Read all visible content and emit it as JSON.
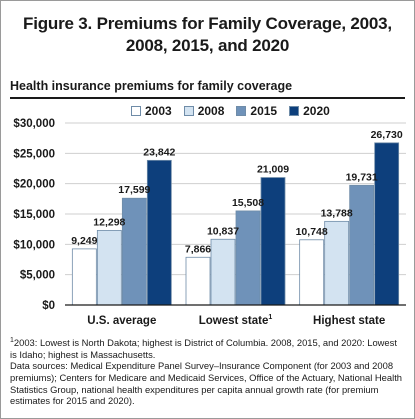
{
  "figure": {
    "title_line1": "Figure 3. Premiums for Family Coverage, 2003,",
    "title_line2": "2008, 2015, and 2020",
    "chart_heading": "Health insurance premiums for family coverage"
  },
  "colors": {
    "2003": "#ffffff",
    "2008": "#d3e3f1",
    "2015": "#6f92b9",
    "2020": "#0d3f7c",
    "bar_border": "#6f8ca8"
  },
  "chart_data": {
    "type": "bar",
    "title": "Health insurance premiums for family coverage",
    "categories": [
      "U.S. average",
      "Lowest state",
      "Highest state"
    ],
    "category_superscripts": [
      "",
      "1",
      ""
    ],
    "series": [
      {
        "name": "2003",
        "values": [
          9249,
          7866,
          10748
        ]
      },
      {
        "name": "2008",
        "values": [
          12298,
          10837,
          13788
        ]
      },
      {
        "name": "2015",
        "values": [
          17599,
          15508,
          19731
        ]
      },
      {
        "name": "2020",
        "values": [
          23842,
          21009,
          26730
        ]
      }
    ],
    "value_labels": [
      [
        "9,249",
        "7,866",
        "10,748"
      ],
      [
        "12,298",
        "10,837",
        "13,788"
      ],
      [
        "17,599",
        "15,508",
        "19,731"
      ],
      [
        "23,842",
        "21,009",
        "26,730"
      ]
    ],
    "ylim": [
      0,
      30000
    ],
    "yticks": [
      0,
      5000,
      10000,
      15000,
      20000,
      25000,
      30000
    ],
    "ytick_labels": [
      "$0",
      "$5,000",
      "$10,000",
      "$15,000",
      "$20,000",
      "$25,000",
      "$30,000"
    ],
    "grid": true,
    "legend_position": "top"
  },
  "notes": {
    "footnote_mark": "1",
    "footnote": "2003: Lowest is North Dakota; highest is District of Columbia. 2008, 2015, and 2020: Lowest is Idaho; highest is Massachusetts.",
    "sources": "Data sources: Medical Expenditure Panel Survey–Insurance Component (for 2003 and 2008 premiums); Centers for Medicare and Medicaid Services, Office of the Actuary, National Health Statistics Group, national health expenditures per capita annual growth rate (for premium estimates for 2015 and 2020)."
  }
}
